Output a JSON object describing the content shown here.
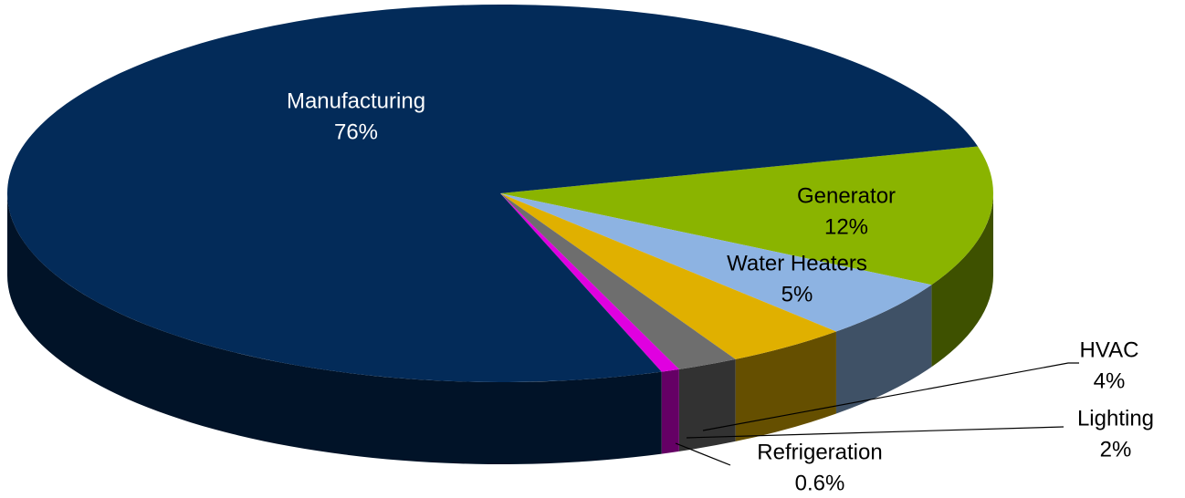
{
  "chart_data": {
    "type": "pie3d",
    "categories": [
      "Generator",
      "Water Heaters",
      "HVAC",
      "Lighting",
      "Refrigeration",
      "Manufacturing"
    ],
    "values": [
      12,
      5,
      4,
      2,
      0.6,
      76
    ],
    "value_labels": [
      "12%",
      "5%",
      "4%",
      "2%",
      "0.6%",
      "76%"
    ],
    "colors": [
      "#8ab400",
      "#8db3e2",
      "#e0b000",
      "#6e6e6e",
      "#e000e0",
      "#032b59"
    ]
  }
}
